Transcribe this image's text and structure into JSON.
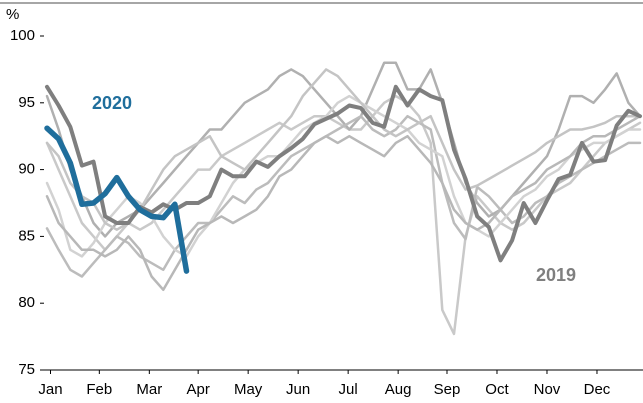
{
  "chart_data": {
    "type": "line",
    "y_label": "%",
    "x": [
      1,
      2,
      3,
      4,
      5,
      6,
      7,
      8,
      9,
      10,
      11,
      12,
      13,
      14,
      15,
      16,
      17,
      18,
      19,
      20,
      21,
      22,
      23,
      24,
      25,
      26,
      27,
      28,
      29,
      30,
      31,
      32,
      33,
      34,
      35,
      36,
      37,
      38,
      39,
      40,
      41,
      42,
      43,
      44,
      45,
      46,
      47,
      48,
      49,
      50,
      51,
      52
    ],
    "xlim": [
      1,
      52
    ],
    "xticks": [
      {
        "value": 1.3,
        "label": "Jan"
      },
      {
        "value": 5.5,
        "label": "Feb"
      },
      {
        "value": 9.8,
        "label": "Mar"
      },
      {
        "value": 14.0,
        "label": "Apr"
      },
      {
        "value": 18.3,
        "label": "May"
      },
      {
        "value": 22.6,
        "label": "Jun"
      },
      {
        "value": 26.9,
        "label": "Jul"
      },
      {
        "value": 31.2,
        "label": "Aug"
      },
      {
        "value": 35.4,
        "label": "Sep"
      },
      {
        "value": 39.7,
        "label": "Oct"
      },
      {
        "value": 44.0,
        "label": "Nov"
      },
      {
        "value": 48.3,
        "label": "Dec"
      }
    ],
    "ylim": [
      75,
      100
    ],
    "yticks": [
      75,
      80,
      85,
      90,
      95,
      100
    ],
    "grid": false,
    "series": [
      {
        "color": "#c9c9c9",
        "values": [
          92,
          90,
          88,
          86,
          85,
          84,
          85,
          86,
          85.5,
          86,
          87,
          88,
          89,
          90,
          90,
          91,
          91.5,
          92,
          92.5,
          93,
          93.5,
          93,
          93.5,
          94,
          94,
          93.5,
          93,
          93,
          94,
          95,
          95.5,
          95,
          94,
          92,
          79.5,
          77.7,
          85,
          88,
          87,
          86,
          85.5,
          86,
          87,
          88,
          88.5,
          89,
          90,
          91,
          92,
          92.5,
          93,
          93.5
        ]
      },
      {
        "color": "#b0b0b0",
        "values": [
          95.5,
          93,
          90,
          88,
          86,
          85,
          86,
          86.5,
          87,
          88,
          89,
          90,
          91,
          92,
          93,
          93,
          94,
          95,
          95.5,
          96,
          97,
          97.5,
          97,
          96,
          95,
          94,
          93,
          94,
          96,
          98,
          98,
          96,
          96,
          97.5,
          95,
          92,
          89,
          87.5,
          86.5,
          87,
          88,
          89,
          90,
          91,
          93,
          95.5,
          95.5,
          95,
          96,
          97.2,
          95,
          94
        ]
      },
      {
        "color": "#bcbcbc",
        "values": [
          85.6,
          84,
          82.5,
          82,
          83,
          84,
          85,
          84.5,
          83.5,
          83,
          82.5,
          84,
          85,
          86,
          86,
          87,
          88,
          87.5,
          88.5,
          89,
          90,
          91,
          91.5,
          92,
          92.5,
          93,
          93.5,
          94,
          93,
          92.5,
          93,
          94,
          93.5,
          93,
          89,
          86,
          84.8,
          88.7,
          88,
          87,
          86,
          86.5,
          87.5,
          88,
          89,
          89.5,
          90,
          90.5,
          91,
          91.5,
          92,
          92
        ]
      },
      {
        "color": "#d2d2d2",
        "values": [
          89,
          87,
          84,
          83.5,
          84.5,
          86,
          87,
          88,
          87.5,
          86.5,
          85,
          84,
          83.5,
          85,
          86,
          87.5,
          89,
          90,
          90.5,
          91,
          91,
          92,
          93,
          93.5,
          94,
          95,
          95.5,
          95,
          94.5,
          94,
          93.5,
          93,
          92,
          91.5,
          91,
          88,
          86,
          85.5,
          85,
          86,
          87,
          88,
          88.5,
          89.5,
          90,
          91,
          91.5,
          92,
          92,
          92.5,
          93,
          93
        ]
      },
      {
        "color": "#c4c4c4",
        "values": [
          92,
          91,
          89,
          88,
          87.5,
          86,
          85.5,
          86,
          87,
          88.5,
          90,
          91,
          91.5,
          92,
          92.5,
          91,
          90.5,
          90,
          91,
          92,
          93,
          94,
          95.5,
          96.5,
          97.5,
          97,
          96,
          95,
          94,
          93,
          92.5,
          93,
          93.5,
          94,
          92,
          90,
          88.5,
          88.8,
          89.3,
          89.8,
          90.3,
          90.8,
          91.3,
          92,
          92.5,
          93,
          93,
          93.2,
          93.5,
          94,
          94,
          94
        ]
      },
      {
        "color": "#b8b8b8",
        "values": [
          88,
          86,
          85,
          84,
          84,
          83.5,
          84,
          85,
          84,
          82,
          81,
          82.5,
          84,
          85.5,
          86,
          86.5,
          86,
          86.5,
          87,
          88,
          89.5,
          90,
          91,
          92,
          92.5,
          92,
          92.5,
          92,
          91.5,
          91,
          92,
          92.5,
          91.5,
          90.5,
          89,
          87,
          86,
          85.5,
          86,
          87,
          88,
          88.5,
          89,
          90,
          90.5,
          91,
          92,
          92.5,
          92.5,
          93,
          93.5,
          94
        ]
      },
      {
        "name": "2019",
        "color": "#7f7f7f",
        "values": [
          96.2,
          94.8,
          93.2,
          90.3,
          90.6,
          86.5,
          86.0,
          86.0,
          87.2,
          86.8,
          87.4,
          87.0,
          87.5,
          87.5,
          88.0,
          90.0,
          89.5,
          89.5,
          90.6,
          90.2,
          91.0,
          91.6,
          92.3,
          93.4,
          93.8,
          94.2,
          94.8,
          94.6,
          93.5,
          93.2,
          96.2,
          94.8,
          96.0,
          95.5,
          95.2,
          91.5,
          89.3,
          86.5,
          85.7,
          83.2,
          84.7,
          87.5,
          86.0,
          87.7,
          89.3,
          89.6,
          92.0,
          90.6,
          90.7,
          93.3,
          94.4,
          94.0
        ]
      },
      {
        "name": "2020",
        "color": "#1f6e9c",
        "values": [
          93.1,
          92.3,
          90.5,
          87.4,
          87.5,
          88.2,
          89.4,
          88.0,
          87.0,
          86.5,
          86.4,
          87.4,
          82.4,
          null,
          null,
          null,
          null,
          null,
          null,
          null,
          null,
          null,
          null,
          null,
          null,
          null,
          null,
          null,
          null,
          null,
          null,
          null,
          null,
          null,
          null,
          null,
          null,
          null,
          null,
          null,
          null,
          null,
          null,
          null,
          null,
          null,
          null,
          null,
          null,
          null,
          null,
          null
        ]
      }
    ]
  }
}
